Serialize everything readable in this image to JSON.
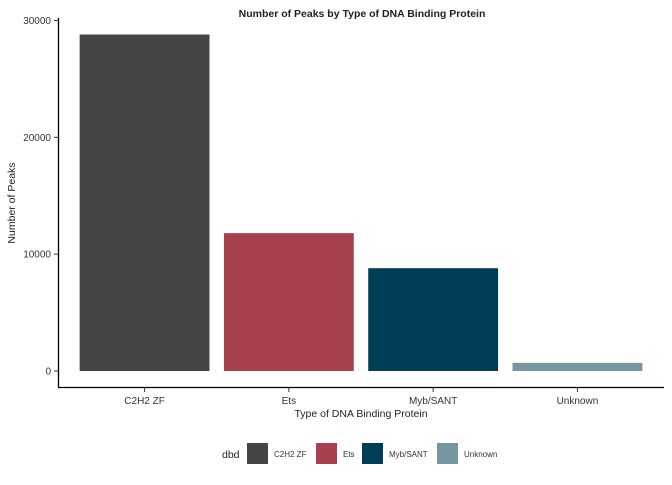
{
  "chart_data": {
    "type": "bar",
    "title": "Number of Peaks by Type of DNA Binding Protein",
    "xlabel": "Type of DNA Binding Protein",
    "ylabel": "Number of Peaks",
    "categories": [
      "C2H2 ZF",
      "Ets",
      "Myb/SANT",
      "Unknown"
    ],
    "values": [
      28800,
      11800,
      8800,
      700
    ],
    "colors": [
      "#454545",
      "#A6414D",
      "#023D57",
      "#7697A0"
    ],
    "ylim": [
      0,
      30000
    ],
    "yticks": [
      0,
      10000,
      20000,
      30000
    ],
    "ytick_labels": [
      "0",
      "10000",
      "20000",
      "30000"
    ],
    "grid": false,
    "legend": {
      "title": "dbd",
      "position": "bottom",
      "entries": [
        "C2H2 ZF",
        "Ets",
        "Myb/SANT",
        "Unknown"
      ]
    }
  }
}
